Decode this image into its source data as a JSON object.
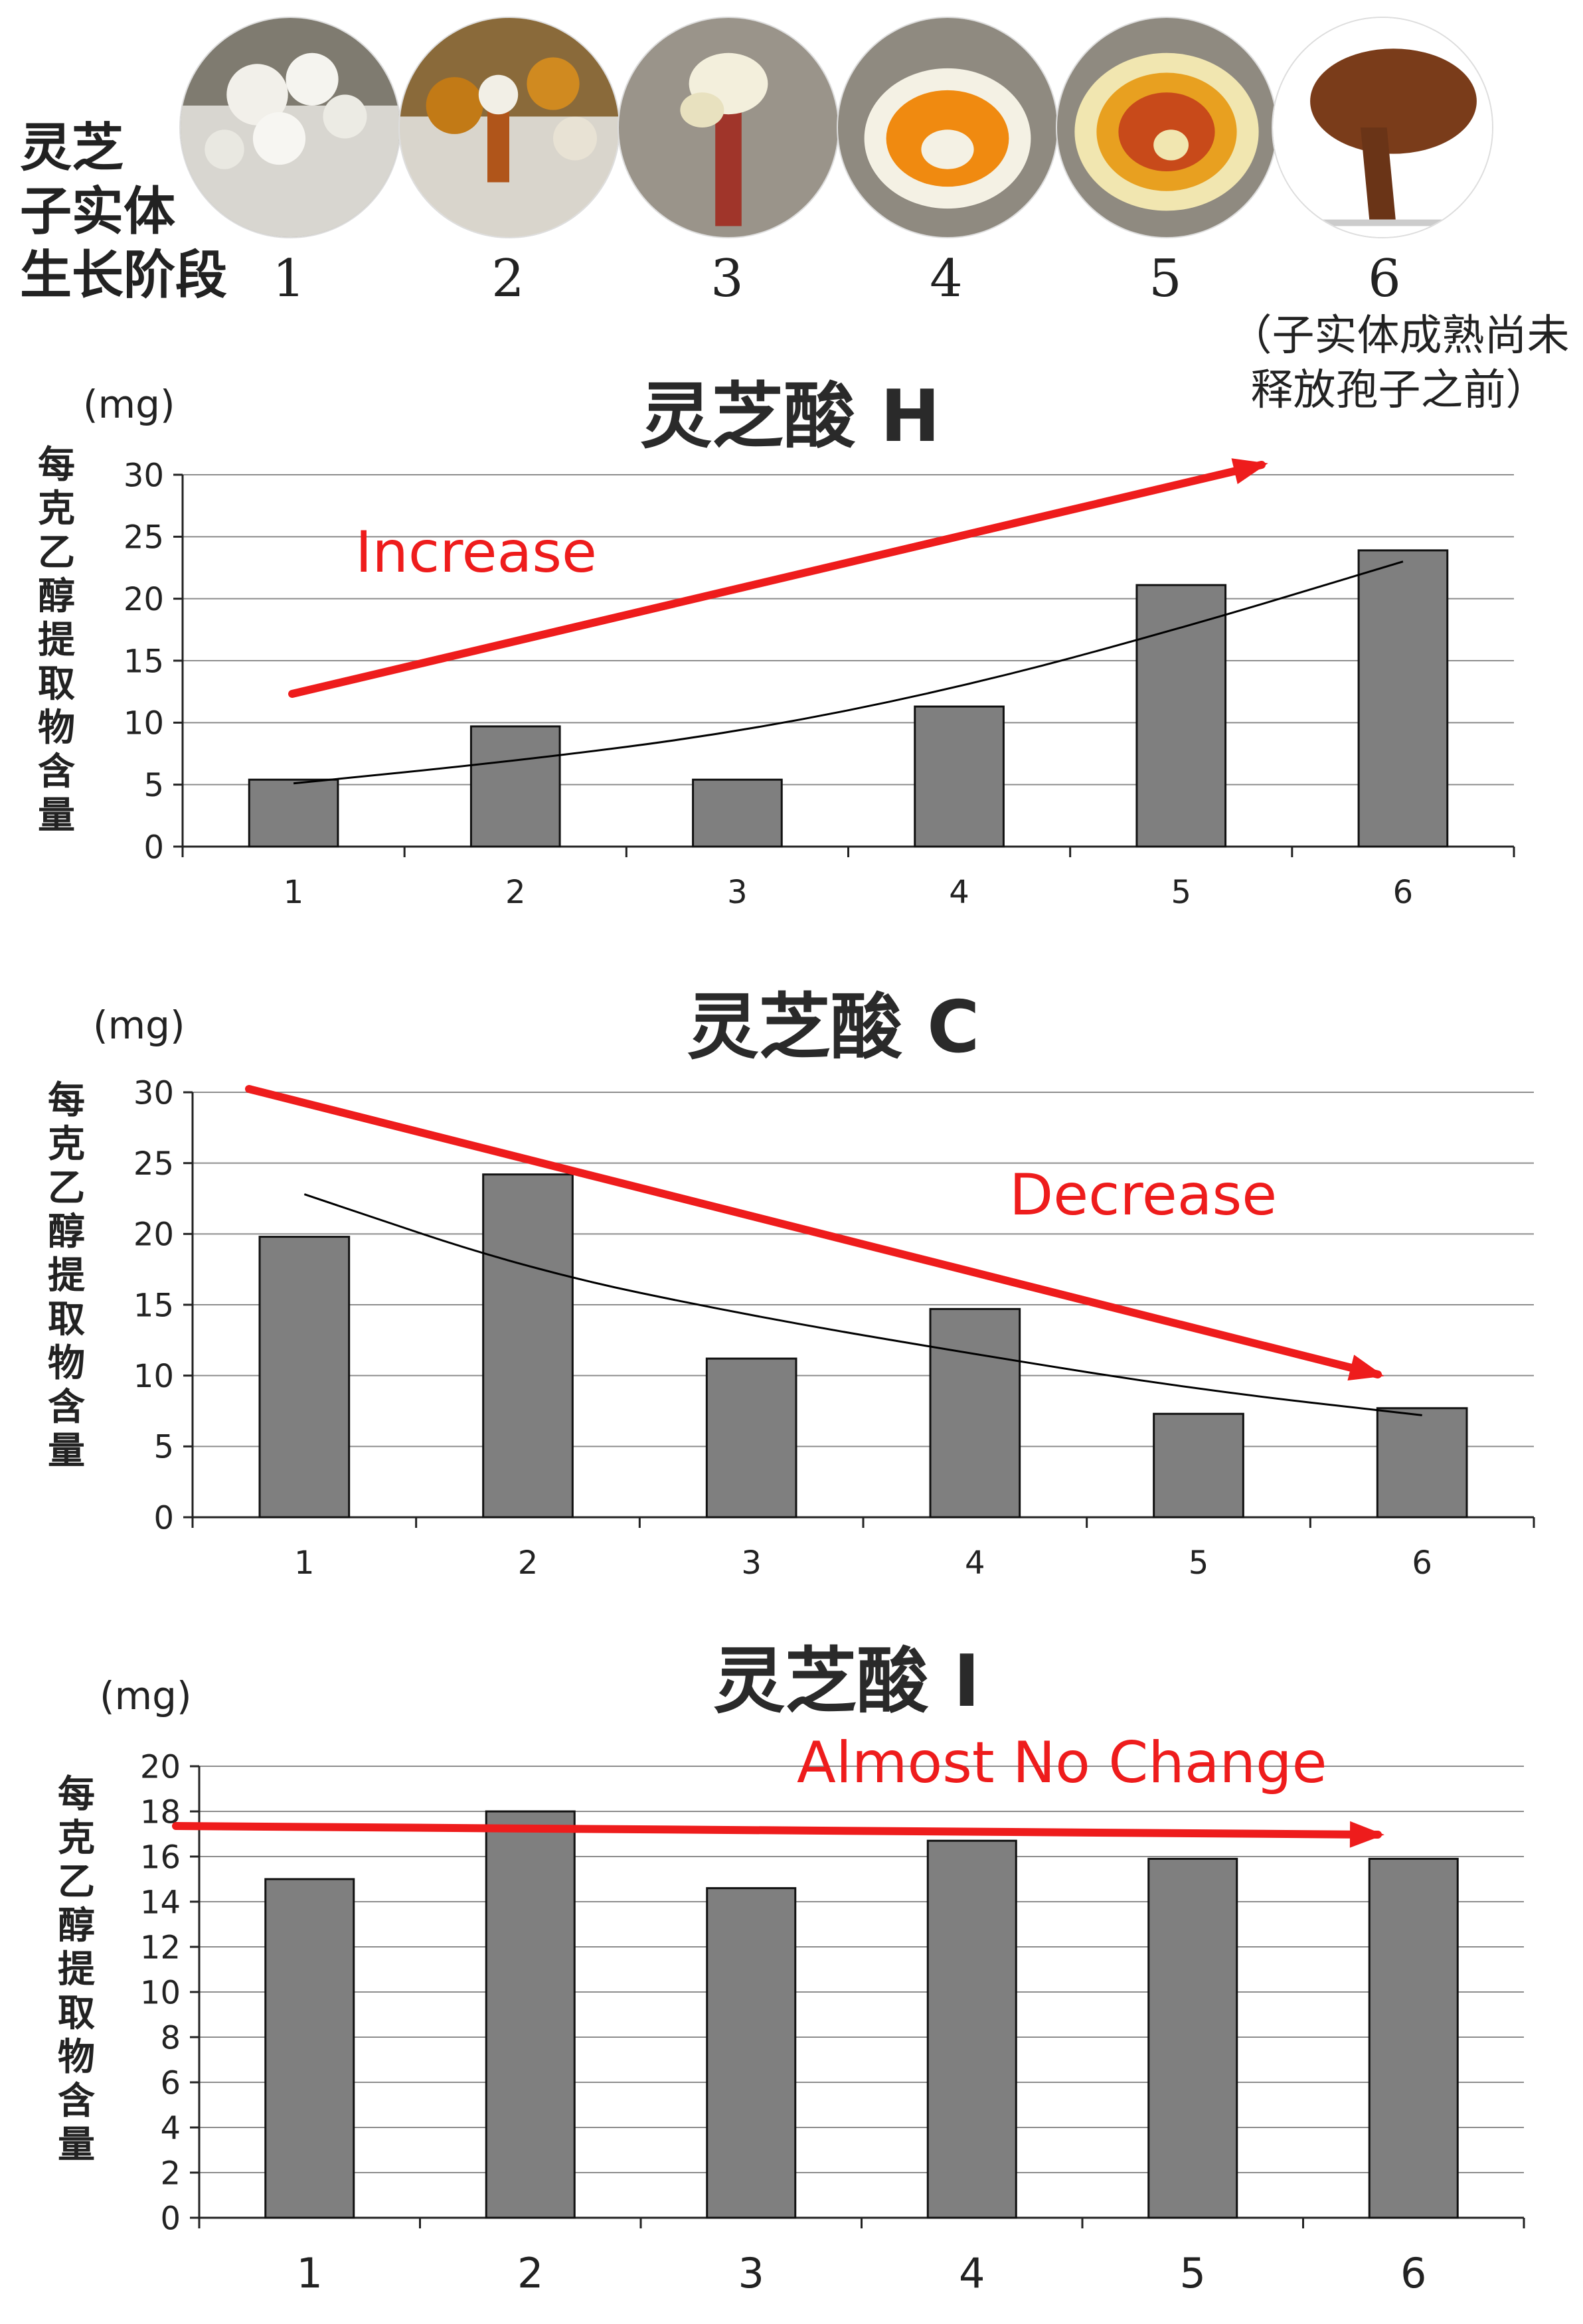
{
  "header": {
    "label_lines": [
      "灵芝",
      "子实体",
      "生长阶段"
    ],
    "stages": [
      "1",
      "2",
      "3",
      "4",
      "5",
      "6"
    ],
    "stage6_note_lines": [
      "（子实体成熟尚未",
      "释放孢子之前）"
    ],
    "photo_icons": [
      "mycelium-photo-icon",
      "primordia-photo-icon",
      "young-stalk-photo-icon",
      "cap-forming-photo-icon",
      "cap-expanding-photo-icon",
      "mature-fruiting-body-photo-icon"
    ]
  },
  "colors": {
    "bar": "#7f7f7f",
    "grid": "#8c8c8c",
    "arrow": "#ee1c1c",
    "trendline": "#000000"
  },
  "chart_data": [
    {
      "type": "bar",
      "title": "灵芝酸 H",
      "unit": "(mg)",
      "ylabel": "每克乙醇提取物含量",
      "categories": [
        "1",
        "2",
        "3",
        "4",
        "5",
        "6"
      ],
      "values": [
        5.4,
        9.7,
        5.4,
        11.3,
        21.1,
        23.9
      ],
      "trendline": [
        5.1,
        6.9,
        9.2,
        12.8,
        17.6,
        23.0
      ],
      "ylim": [
        0,
        30
      ],
      "yticks": [
        0,
        5,
        10,
        15,
        20,
        25,
        30
      ],
      "annotation": "Increase",
      "arrow_direction": "up"
    },
    {
      "type": "bar",
      "title": "灵芝酸 C",
      "unit": "(mg)",
      "ylabel": "每克乙醇提取物含量",
      "categories": [
        "1",
        "2",
        "3",
        "4",
        "5",
        "6"
      ],
      "values": [
        19.8,
        24.2,
        11.2,
        14.7,
        7.3,
        7.7
      ],
      "trendline": [
        22.8,
        17.5,
        14.2,
        11.5,
        9.0,
        7.2
      ],
      "ylim": [
        0,
        30
      ],
      "yticks": [
        0,
        5,
        10,
        15,
        20,
        25,
        30
      ],
      "annotation": "Decrease",
      "arrow_direction": "down"
    },
    {
      "type": "bar",
      "title": "灵芝酸 I",
      "unit": "(mg)",
      "ylabel": "每克乙醇提取物含量",
      "categories": [
        "1",
        "2",
        "3",
        "4",
        "5",
        "6"
      ],
      "values": [
        15.0,
        18.0,
        14.6,
        16.7,
        15.9,
        15.9
      ],
      "ylim": [
        0,
        20
      ],
      "yticks": [
        0,
        2,
        4,
        6,
        8,
        10,
        12,
        14,
        16,
        18,
        20
      ],
      "annotation": "Almost No Change",
      "arrow_direction": "flat"
    }
  ]
}
